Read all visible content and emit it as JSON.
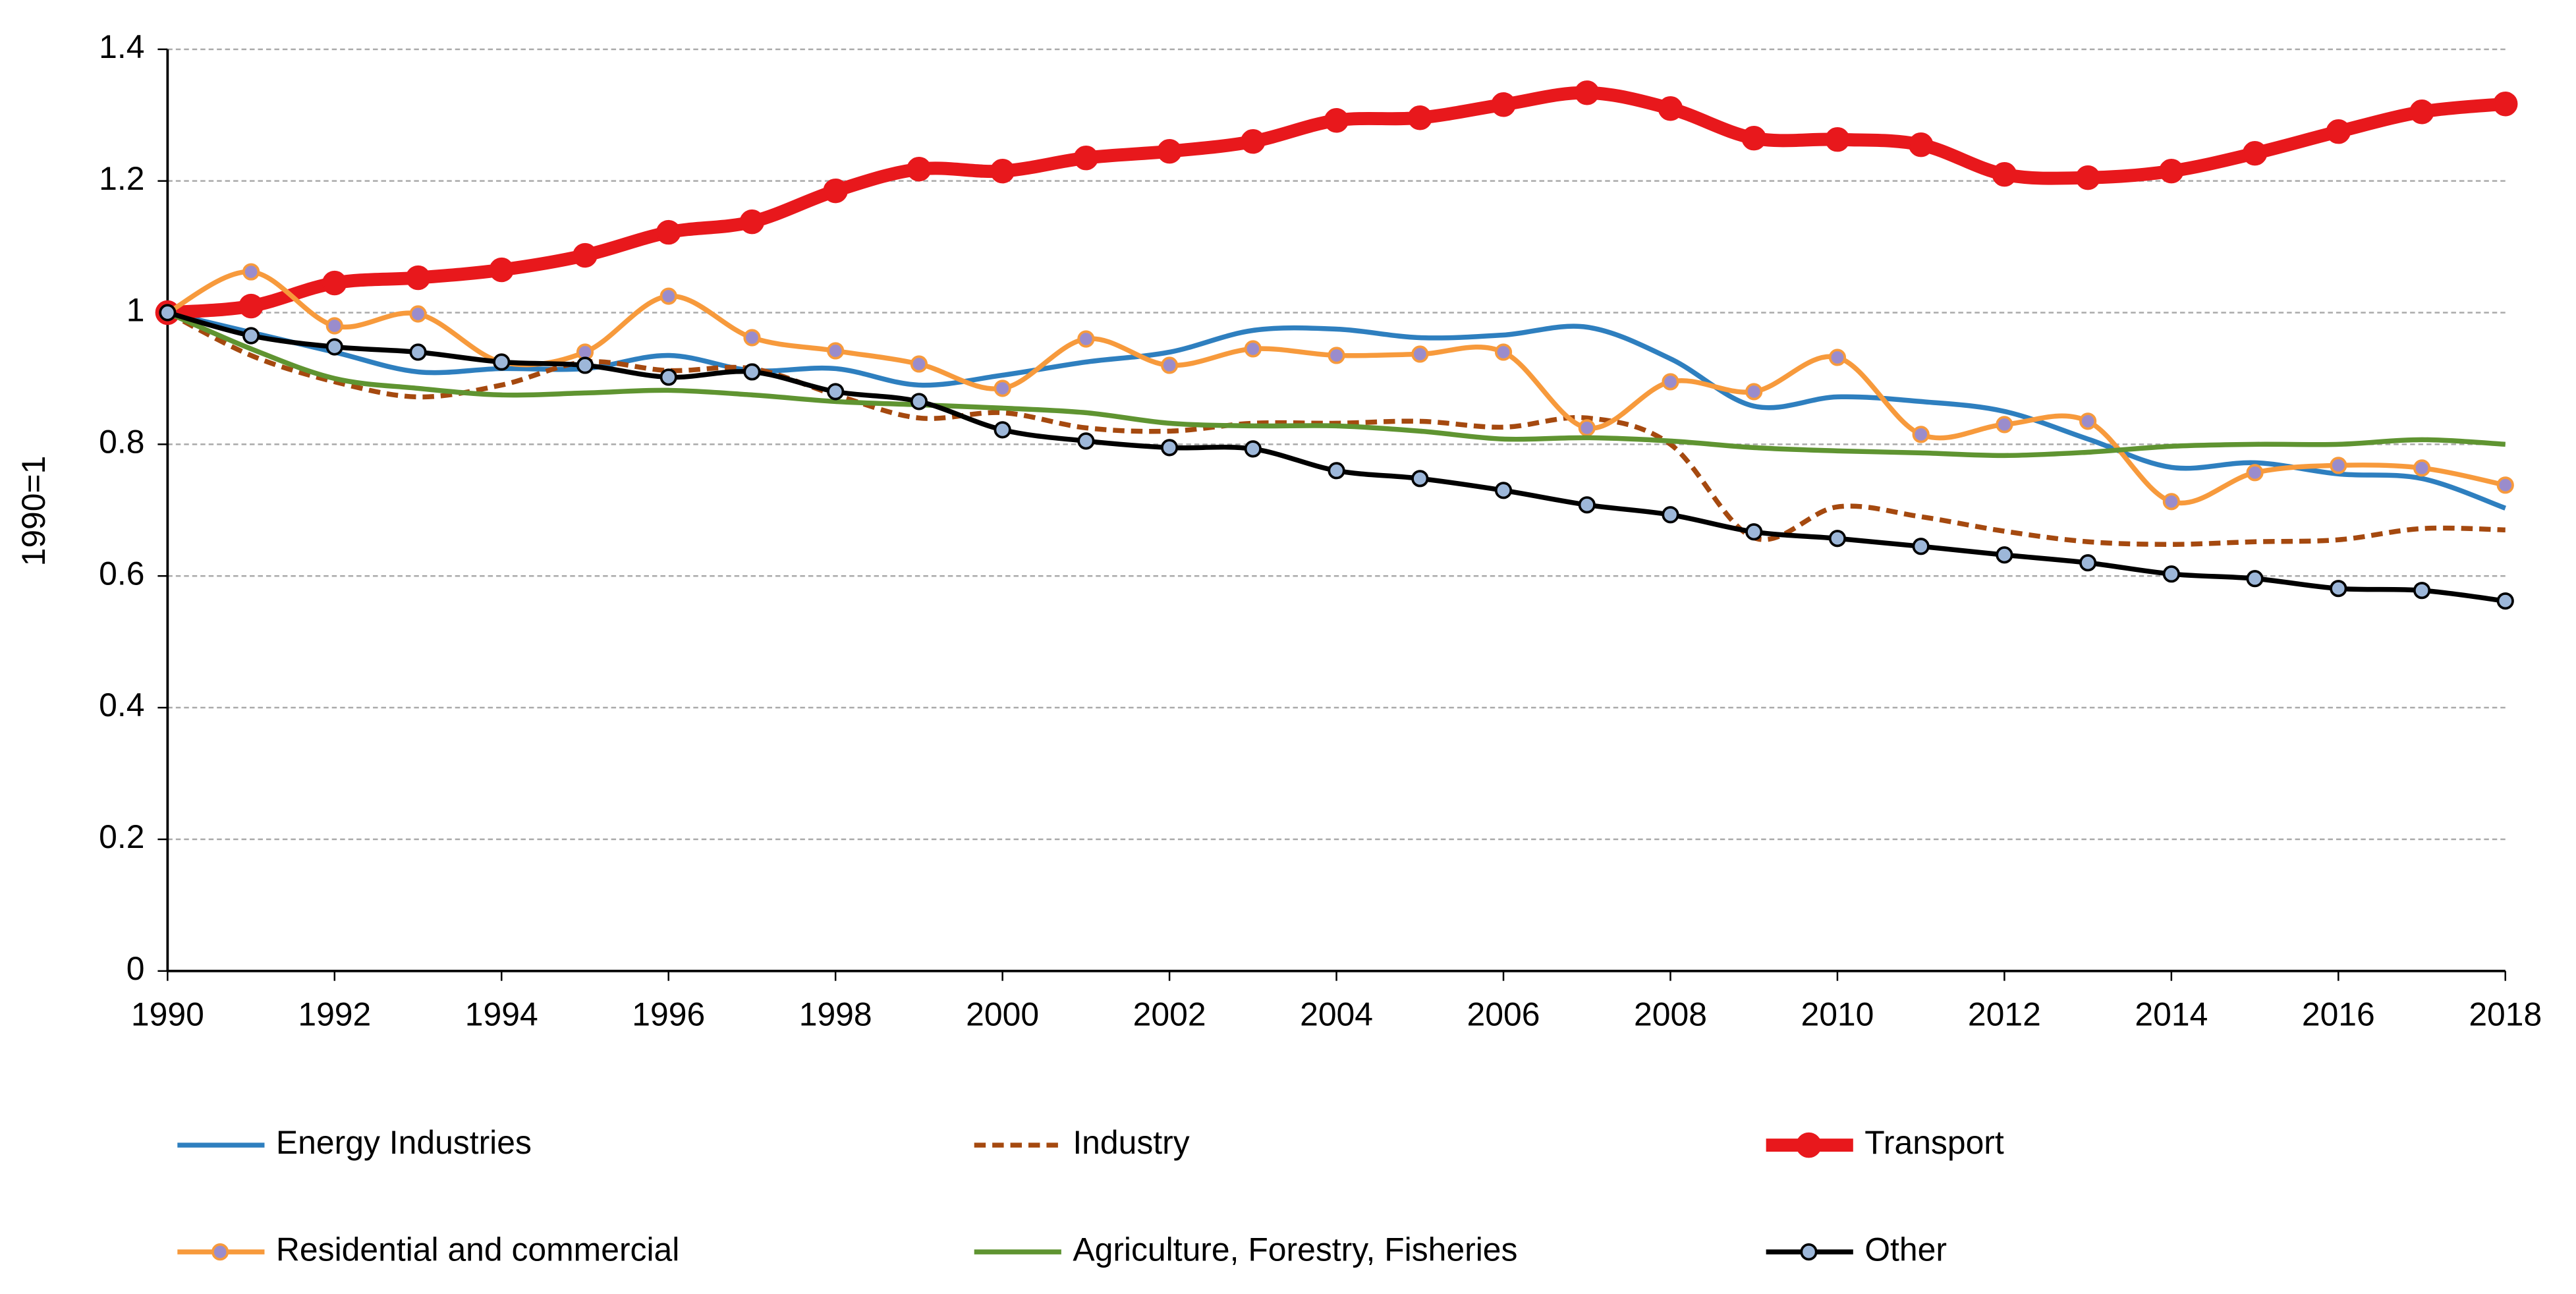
{
  "chart_data": {
    "type": "line",
    "y_label": "1990=1",
    "x": [
      1990,
      1991,
      1992,
      1993,
      1994,
      1995,
      1996,
      1997,
      1998,
      1999,
      2000,
      2001,
      2002,
      2003,
      2004,
      2005,
      2006,
      2007,
      2008,
      2009,
      2010,
      2011,
      2012,
      2013,
      2014,
      2015,
      2016,
      2017,
      2018
    ],
    "xlim": [
      1990,
      2018
    ],
    "xticks": [
      1990,
      1992,
      1994,
      1996,
      1998,
      2000,
      2002,
      2004,
      2006,
      2008,
      2010,
      2012,
      2014,
      2016,
      2018
    ],
    "ylim": [
      0,
      1.4
    ],
    "yticks": [
      0,
      0.2,
      0.4,
      0.6,
      0.8,
      1,
      1.2,
      1.4
    ],
    "grid": true,
    "legend": "bottom",
    "series": [
      {
        "name": "Energy Industries",
        "color": "#2e7fbf",
        "line_width": 3,
        "dashed": false,
        "marker": false,
        "values": [
          1.0,
          0.97,
          0.94,
          0.91,
          0.915,
          0.915,
          0.935,
          0.912,
          0.915,
          0.89,
          0.905,
          0.925,
          0.94,
          0.973,
          0.975,
          0.962,
          0.966,
          0.978,
          0.93,
          0.858,
          0.872,
          0.865,
          0.85,
          0.808,
          0.765,
          0.772,
          0.755,
          0.748,
          0.703
        ]
      },
      {
        "name": "Industry",
        "color": "#a5490f",
        "line_width": 3,
        "dashed": true,
        "marker": false,
        "values": [
          1.0,
          0.935,
          0.895,
          0.872,
          0.89,
          0.925,
          0.912,
          0.915,
          0.875,
          0.84,
          0.848,
          0.825,
          0.82,
          0.832,
          0.832,
          0.835,
          0.826,
          0.84,
          0.8,
          0.658,
          0.705,
          0.69,
          0.668,
          0.652,
          0.648,
          0.652,
          0.655,
          0.672,
          0.67
        ]
      },
      {
        "name": "Transport",
        "color": "#e8181c",
        "line_width": 8,
        "dashed": false,
        "marker": true,
        "marker_color": "#e8181c",
        "values": [
          1.0,
          1.01,
          1.045,
          1.053,
          1.065,
          1.087,
          1.122,
          1.138,
          1.185,
          1.218,
          1.215,
          1.235,
          1.245,
          1.26,
          1.292,
          1.296,
          1.316,
          1.334,
          1.31,
          1.265,
          1.263,
          1.255,
          1.21,
          1.205,
          1.215,
          1.242,
          1.275,
          1.305,
          1.317
        ]
      },
      {
        "name": "Residential and commercial",
        "color": "#f79a3c",
        "line_width": 3,
        "dashed": false,
        "marker": true,
        "marker_color": "#9a8ccc",
        "values": [
          1.0,
          1.062,
          0.98,
          0.998,
          0.925,
          0.94,
          1.025,
          0.962,
          0.942,
          0.922,
          0.885,
          0.96,
          0.92,
          0.945,
          0.935,
          0.937,
          0.94,
          0.825,
          0.895,
          0.88,
          0.932,
          0.815,
          0.83,
          0.835,
          0.713,
          0.757,
          0.768,
          0.764,
          0.738
        ]
      },
      {
        "name": "Agriculture, Forestry, Fisheries",
        "color": "#5f9431",
        "line_width": 3,
        "dashed": false,
        "marker": false,
        "values": [
          1.0,
          0.945,
          0.9,
          0.885,
          0.875,
          0.878,
          0.882,
          0.875,
          0.865,
          0.86,
          0.855,
          0.848,
          0.832,
          0.828,
          0.828,
          0.82,
          0.808,
          0.81,
          0.805,
          0.795,
          0.79,
          0.787,
          0.783,
          0.788,
          0.797,
          0.8,
          0.8,
          0.807,
          0.8
        ]
      },
      {
        "name": "Other",
        "color": "#000000",
        "line_width": 3,
        "dashed": false,
        "marker": true,
        "marker_color": "#9db7d9",
        "values": [
          1.0,
          0.965,
          0.948,
          0.94,
          0.925,
          0.92,
          0.902,
          0.91,
          0.88,
          0.865,
          0.822,
          0.805,
          0.795,
          0.793,
          0.76,
          0.748,
          0.73,
          0.708,
          0.693,
          0.667,
          0.657,
          0.645,
          0.632,
          0.62,
          0.603,
          0.596,
          0.581,
          0.578,
          0.562
        ]
      }
    ]
  }
}
